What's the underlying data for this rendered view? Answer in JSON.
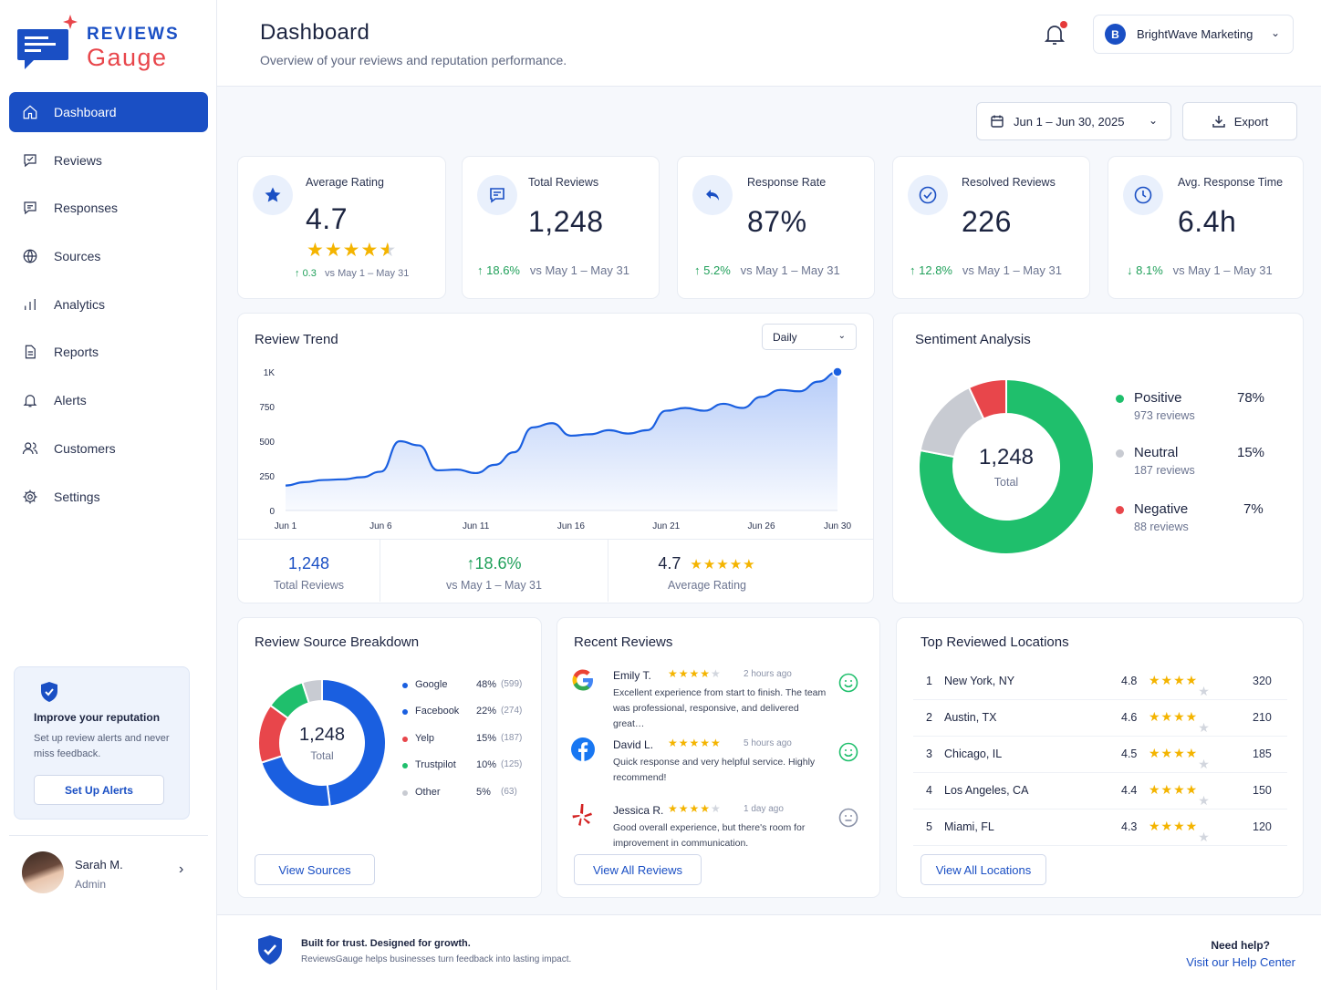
{
  "brand": {
    "line1": "REVIEWS",
    "line2": "Gauge"
  },
  "sidebar": {
    "items": [
      {
        "label": "Dashboard",
        "icon": "home-icon"
      },
      {
        "label": "Reviews",
        "icon": "review-icon"
      },
      {
        "label": "Responses",
        "icon": "chat-icon"
      },
      {
        "label": "Sources",
        "icon": "globe-icon"
      },
      {
        "label": "Analytics",
        "icon": "bar-chart-icon"
      },
      {
        "label": "Reports",
        "icon": "document-icon"
      },
      {
        "label": "Alerts",
        "icon": "bell-icon"
      },
      {
        "label": "Customers",
        "icon": "users-icon"
      },
      {
        "label": "Settings",
        "icon": "gear-icon"
      }
    ],
    "promo": {
      "title": "Improve your reputation",
      "desc": "Set up review alerts and never miss feedback.",
      "button": "Set Up Alerts"
    },
    "user": {
      "name": "Sarah M.",
      "role": "Admin"
    }
  },
  "header": {
    "title": "Dashboard",
    "subtitle": "Overview of your reviews and reputation performance.",
    "account_initial": "B",
    "account_name": "BrightWave Marketing"
  },
  "toolbar": {
    "date_range": "Jun 1 – Jun 30, 2025",
    "export": "Export"
  },
  "kpis": [
    {
      "label": "Average Rating",
      "value": "4.7",
      "delta": "0.3",
      "compare": "vs May 1 – May 31",
      "direction": "up",
      "rating": 4.7
    },
    {
      "label": "Total Reviews",
      "value": "1,248",
      "delta": "18.6%",
      "compare": "vs May 1 – May 31",
      "direction": "up"
    },
    {
      "label": "Response Rate",
      "value": "87%",
      "delta": "5.2%",
      "compare": "vs May 1 – May 31",
      "direction": "up"
    },
    {
      "label": "Resolved Reviews",
      "value": "226",
      "delta": "12.8%",
      "compare": "vs May 1 – May 31",
      "direction": "up"
    },
    {
      "label": "Avg. Response Time",
      "value": "6.4h",
      "delta": "8.1%",
      "compare": "vs May 1 – May 31",
      "direction": "down"
    }
  ],
  "trend": {
    "title": "Review Trend",
    "granularity": "Daily",
    "summary": [
      {
        "value": "1,248",
        "label": "Total Reviews"
      },
      {
        "value": "18.6%",
        "label": "vs May 1 – May 31"
      },
      {
        "value": "4.7",
        "label": "Average Rating"
      }
    ]
  },
  "chart_data": [
    {
      "type": "area",
      "title": "Review Trend",
      "x": [
        "Jun 1",
        "Jun 2",
        "Jun 3",
        "Jun 4",
        "Jun 5",
        "Jun 6",
        "Jun 7",
        "Jun 8",
        "Jun 9",
        "Jun 10",
        "Jun 11",
        "Jun 12",
        "Jun 13",
        "Jun 14",
        "Jun 15",
        "Jun 16",
        "Jun 17",
        "Jun 18",
        "Jun 19",
        "Jun 20",
        "Jun 21",
        "Jun 22",
        "Jun 23",
        "Jun 24",
        "Jun 25",
        "Jun 26",
        "Jun 27",
        "Jun 28",
        "Jun 29",
        "Jun 30"
      ],
      "x_tick_labels": [
        "Jun 1",
        "Jun 6",
        "Jun 11",
        "Jun 16",
        "Jun 21",
        "Jun 26",
        "Jun 30"
      ],
      "y_tick_labels": [
        "0",
        "250",
        "500",
        "750",
        "1K"
      ],
      "ylim": [
        0,
        1000
      ],
      "series": [
        {
          "values": [
            180,
            205,
            220,
            225,
            240,
            280,
            500,
            470,
            290,
            295,
            270,
            330,
            420,
            600,
            630,
            540,
            550,
            580,
            555,
            580,
            720,
            740,
            720,
            770,
            740,
            820,
            870,
            860,
            930,
            1000
          ]
        }
      ]
    },
    {
      "type": "pie",
      "title": "Sentiment Analysis",
      "categories": [
        "Positive",
        "Neutral",
        "Negative"
      ],
      "values": [
        78,
        15,
        7
      ],
      "counts": [
        973,
        187,
        88
      ],
      "total": 1248
    },
    {
      "type": "pie",
      "title": "Review Source Breakdown",
      "categories": [
        "Google",
        "Facebook",
        "Yelp",
        "Trustpilot",
        "Other"
      ],
      "values": [
        48,
        22,
        15,
        10,
        5
      ],
      "counts": [
        599,
        274,
        187,
        125,
        63
      ],
      "total": 1248
    }
  ],
  "sentiment": {
    "title": "Sentiment Analysis",
    "center_value": "1,248",
    "center_label": "Total",
    "items": [
      {
        "name": "Positive",
        "sub": "973 reviews",
        "pct": "78%",
        "color": "#1fbf6c"
      },
      {
        "name": "Neutral",
        "sub": "187 reviews",
        "pct": "15%",
        "color": "#c8cbd2"
      },
      {
        "name": "Negative",
        "sub": "88 reviews",
        "pct": "7%",
        "color": "#e8464b"
      }
    ]
  },
  "sources": {
    "title": "Review Source Breakdown",
    "center_value": "1,248",
    "center_label": "Total",
    "items": [
      {
        "name": "Google",
        "pct": "48%",
        "count": "(599)",
        "color": "#1a5fe0"
      },
      {
        "name": "Facebook",
        "pct": "22%",
        "count": "(274)",
        "color": "#1a5fe0"
      },
      {
        "name": "Yelp",
        "pct": "15%",
        "count": "(187)",
        "color": "#e8464b"
      },
      {
        "name": "Trustpilot",
        "pct": "10%",
        "count": "(125)",
        "color": "#1fbf6c"
      },
      {
        "name": "Other",
        "pct": "5%",
        "count": "(63)",
        "color": "#c8cbd2"
      }
    ],
    "button": "View Sources"
  },
  "recent": {
    "title": "Recent Reviews",
    "items": [
      {
        "name": "Emily T.",
        "time": "2 hours ago",
        "text": "Excellent experience from start to finish. The team was professional, responsive, and delivered great…",
        "rating": 4.5,
        "source_icon": "google-icon",
        "sentiment": "positive"
      },
      {
        "name": "David L.",
        "time": "5 hours ago",
        "text": "Quick response and very helpful service. Highly recommend!",
        "rating": 5,
        "source_icon": "facebook-icon",
        "sentiment": "positive"
      },
      {
        "name": "Jessica R.",
        "time": "1 day ago",
        "text": "Good overall experience, but there's room for improvement in communication.",
        "rating": 4.5,
        "source_icon": "yelp-icon",
        "sentiment": "neutral"
      }
    ],
    "button": "View All Reviews"
  },
  "locations": {
    "title": "Top Reviewed Locations",
    "items": [
      {
        "rank": "1",
        "name": "New York, NY",
        "rating": "4.8",
        "count": "320",
        "stars": 4
      },
      {
        "rank": "2",
        "name": "Austin, TX",
        "rating": "4.6",
        "count": "210",
        "stars": 4
      },
      {
        "rank": "3",
        "name": "Chicago, IL",
        "rating": "4.5",
        "count": "185",
        "stars": 4
      },
      {
        "rank": "4",
        "name": "Los Angeles, CA",
        "rating": "4.4",
        "count": "150",
        "stars": 4
      },
      {
        "rank": "5",
        "name": "Miami, FL",
        "rating": "4.3",
        "count": "120",
        "stars": 4
      }
    ],
    "button": "View All Locations"
  },
  "footer": {
    "tagline": "Built for trust. Designed for growth.",
    "desc": "ReviewsGauge helps businesses turn feedback into lasting impact.",
    "help_title": "Need help?",
    "help_link": "Visit our Help Center"
  },
  "colors": {
    "primary": "#1a4fc4",
    "positive": "#1fbf6c",
    "negative": "#e8464b",
    "neutral": "#c8cbd2",
    "star": "#f4b400"
  }
}
